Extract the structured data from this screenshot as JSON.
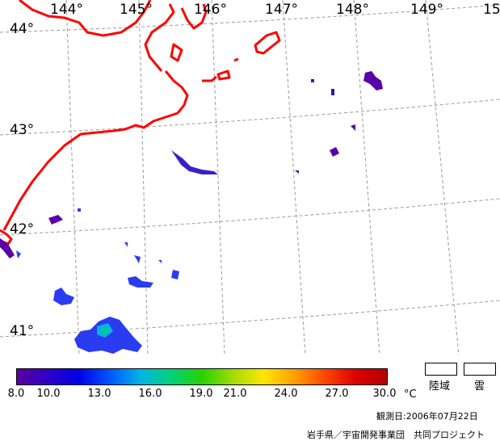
{
  "map": {
    "longitude_labels": [
      "144°",
      "145°",
      "146°",
      "147°",
      "148°",
      "149°",
      "15"
    ],
    "latitude_labels": [
      "44°",
      "43°",
      "42°",
      "41°"
    ]
  },
  "legend": {
    "tick_labels": [
      "8.0",
      "10.0",
      "13.0",
      "16.0",
      "19.0",
      "21.0",
      "24.0",
      "27.0",
      "30.0"
    ],
    "unit": "°C",
    "land_label": "陸域",
    "cloud_label": "雲",
    "colors": [
      "#5a009e",
      "#2f00c8",
      "#0000e6",
      "#0055ff",
      "#00b4e6",
      "#00d27a",
      "#28d200",
      "#a0dc00",
      "#ffe600",
      "#ffa000",
      "#ff4600",
      "#dc0000",
      "#b40000"
    ]
  },
  "footer": {
    "observation_date": "観測日:2006年07月22日",
    "credit": "岩手県／宇宙開発事業団　共同プロジェクト"
  },
  "colors": {
    "coastline": "#ff0000",
    "grid": "#9a9a9a",
    "sst_purple": "#5a00a8",
    "sst_blue": "#2a3cf0"
  }
}
